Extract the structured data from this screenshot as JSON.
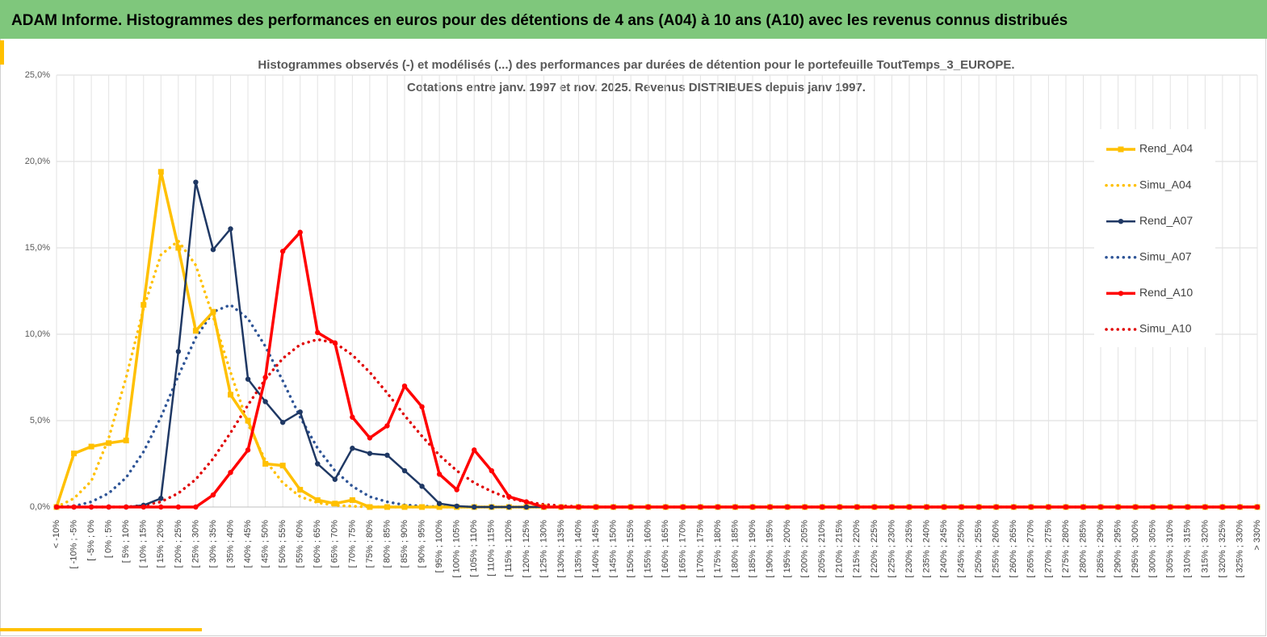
{
  "page_title": "ADAM Informe. Histogrammes des performances en euros pour des détentions de 4 ans (A04) à 10 ans (A10) avec les revenus connus distribués",
  "chart_data": {
    "type": "line",
    "title": "Histogrammes observés (-) et modélisés (...) des performances par durées de détention pour le portefeuille ToutTemps_3_EUROPE.",
    "subtitle": "Cotations entre janv. 1997 et nov. 2025. Revenus DISTRIBUES depuis janv 1997.",
    "categories": [
      "< -10%",
      "[ -10% ; -5%",
      "[ -5% ; 0%",
      "[ 0% ; 5%",
      "[ 5% ; 10%",
      "[ 10% ; 15%",
      "[ 15% ; 20%",
      "[ 20% ; 25%",
      "[ 25% ; 30%",
      "[ 30% ; 35%",
      "[ 35% ; 40%",
      "[ 40% ; 45%",
      "[ 45% ; 50%",
      "[ 50% ; 55%",
      "[ 55% ; 60%",
      "[ 60% ; 65%",
      "[ 65% ; 70%",
      "[ 70% ; 75%",
      "[ 75% ; 80%",
      "[ 80% ; 85%",
      "[ 85% ; 90%",
      "[ 90% ; 95%",
      "[ 95% ; 100%",
      "[ 100% ; 105%",
      "[ 105% ; 110%",
      "[ 110% ; 115%",
      "[ 115% ; 120%",
      "[ 120% ; 125%",
      "[ 125% ; 130%",
      "[ 130% ; 135%",
      "[ 135% ; 140%",
      "[ 140% ; 145%",
      "[ 145% ; 150%",
      "[ 150% ; 155%",
      "[ 155% ; 160%",
      "[ 160% ; 165%",
      "[ 165% ; 170%",
      "[ 170% ; 175%",
      "[ 175% ; 180%",
      "[ 180% ; 185%",
      "[ 185% ; 190%",
      "[ 190% ; 195%",
      "[ 195% ; 200%",
      "[ 200% ; 205%",
      "[ 205% ; 210%",
      "[ 210% ; 215%",
      "[ 215% ; 220%",
      "[ 220% ; 225%",
      "[ 225% ; 230%",
      "[ 230% ; 235%",
      "[ 235% ; 240%",
      "[ 240% ; 245%",
      "[ 245% ; 250%",
      "[ 250% ; 255%",
      "[ 255% ; 260%",
      "[ 260% ; 265%",
      "[ 265% ; 270%",
      "[ 270% ; 275%",
      "[ 275% ; 280%",
      "[ 280% ; 285%",
      "[ 285% ; 290%",
      "[ 290% ; 295%",
      "[ 295% ; 300%",
      "[ 300% ; 305%",
      "[ 305% ; 310%",
      "[ 310% ; 315%",
      "[ 315% ; 320%",
      "[ 320% ; 325%",
      "[ 325% ; 330%",
      "> 330%"
    ],
    "series": [
      {
        "name": "Rend_A04",
        "color": "#ffc000",
        "dash": "solid",
        "marker": "square",
        "width": 3.5,
        "values": [
          0,
          3.1,
          3.5,
          3.7,
          3.85,
          11.7,
          19.4,
          15.0,
          10.2,
          11.3,
          6.5,
          5.0,
          2.5,
          2.4,
          1.0,
          0.4,
          0.2,
          0.4,
          0,
          0,
          0,
          0,
          0,
          0,
          0,
          0,
          0,
          0,
          0,
          0,
          0,
          0,
          0,
          0,
          0,
          0,
          0,
          0,
          0,
          0,
          0,
          0,
          0,
          0,
          0,
          0,
          0,
          0,
          0,
          0,
          0,
          0,
          0,
          0,
          0,
          0,
          0,
          0,
          0,
          0,
          0,
          0,
          0,
          0,
          0,
          0,
          0,
          0,
          0,
          0
        ]
      },
      {
        "name": "Simu_A04",
        "color": "#ffc000",
        "dash": "dotted",
        "marker": "none",
        "width": 3.5,
        "values": [
          0,
          0.5,
          1.5,
          4.0,
          7.5,
          11.5,
          14.6,
          15.4,
          14.0,
          11.0,
          7.8,
          4.8,
          2.7,
          1.4,
          0.6,
          0.25,
          0.1,
          0.04,
          0.01,
          0,
          0,
          0,
          0,
          0,
          0,
          0,
          0,
          0,
          0,
          0,
          0,
          0,
          0,
          0,
          0,
          0,
          0,
          0,
          0,
          0,
          0,
          0,
          0,
          0,
          0,
          0,
          0,
          0,
          0,
          0,
          0,
          0,
          0,
          0,
          0,
          0,
          0,
          0,
          0,
          0,
          0,
          0,
          0,
          0,
          0,
          0,
          0,
          0,
          0,
          0
        ]
      },
      {
        "name": "Rend_A07",
        "color": "#1f3864",
        "dash": "solid",
        "marker": "circle",
        "width": 2.5,
        "values": [
          0,
          0,
          0,
          0,
          0,
          0.1,
          0.5,
          9.0,
          18.8,
          14.9,
          16.1,
          7.4,
          6.1,
          4.9,
          5.5,
          2.5,
          1.6,
          3.4,
          3.1,
          3.0,
          2.1,
          1.2,
          0.2,
          0.05,
          0,
          0,
          0,
          0,
          0,
          0,
          0,
          0,
          0,
          0,
          0,
          0,
          0,
          0,
          0,
          0,
          0,
          0,
          0,
          0,
          0,
          0,
          0,
          0,
          0,
          0,
          0,
          0,
          0,
          0,
          0,
          0,
          0,
          0,
          0,
          0,
          0,
          0,
          0,
          0,
          0,
          0,
          0,
          0,
          0,
          0
        ]
      },
      {
        "name": "Simu_A07",
        "color": "#2f5597",
        "dash": "dotted",
        "marker": "none",
        "width": 3.5,
        "values": [
          0,
          0.05,
          0.3,
          0.8,
          1.7,
          3.2,
          5.2,
          7.6,
          9.8,
          11.3,
          11.7,
          10.9,
          9.3,
          7.3,
          5.2,
          3.4,
          2.1,
          1.2,
          0.6,
          0.3,
          0.12,
          0.05,
          0.02,
          0,
          0,
          0,
          0,
          0,
          0,
          0,
          0,
          0,
          0,
          0,
          0,
          0,
          0,
          0,
          0,
          0,
          0,
          0,
          0,
          0,
          0,
          0,
          0,
          0,
          0,
          0,
          0,
          0,
          0,
          0,
          0,
          0,
          0,
          0,
          0,
          0,
          0,
          0,
          0,
          0,
          0,
          0,
          0,
          0,
          0,
          0
        ]
      },
      {
        "name": "Rend_A10",
        "color": "#ff0000",
        "dash": "solid",
        "marker": "circle",
        "width": 3.5,
        "values": [
          0,
          0,
          0,
          0,
          0,
          0,
          0,
          0,
          0,
          0.7,
          2.0,
          3.3,
          7.5,
          14.8,
          15.9,
          10.1,
          9.5,
          5.2,
          4.0,
          4.7,
          7.0,
          5.8,
          1.9,
          1.0,
          3.3,
          2.1,
          0.6,
          0.3,
          0,
          0,
          0,
          0,
          0,
          0,
          0,
          0,
          0,
          0,
          0,
          0,
          0,
          0,
          0,
          0,
          0,
          0,
          0,
          0,
          0,
          0,
          0,
          0,
          0,
          0,
          0,
          0,
          0,
          0,
          0,
          0,
          0,
          0,
          0,
          0,
          0,
          0,
          0,
          0,
          0,
          0
        ]
      },
      {
        "name": "Simu_A10",
        "color": "#e00000",
        "dash": "dotted",
        "marker": "none",
        "width": 3.5,
        "values": [
          0,
          0,
          0,
          0,
          0,
          0.1,
          0.3,
          0.8,
          1.6,
          2.8,
          4.3,
          5.9,
          7.4,
          8.6,
          9.4,
          9.7,
          9.5,
          8.8,
          7.8,
          6.6,
          5.3,
          4.1,
          3.0,
          2.1,
          1.4,
          0.9,
          0.5,
          0.3,
          0.15,
          0.07,
          0.03,
          0,
          0,
          0,
          0,
          0,
          0,
          0,
          0,
          0,
          0,
          0,
          0,
          0,
          0,
          0,
          0,
          0,
          0,
          0,
          0,
          0,
          0,
          0,
          0,
          0,
          0,
          0,
          0,
          0,
          0,
          0,
          0,
          0,
          0,
          0,
          0,
          0,
          0,
          0
        ]
      }
    ],
    "ylim": [
      0,
      25
    ],
    "yticks": [
      {
        "value": 0,
        "label": "0,0%"
      },
      {
        "value": 5,
        "label": "5,0%"
      },
      {
        "value": 10,
        "label": "10,0%"
      },
      {
        "value": 15,
        "label": "15,0%"
      },
      {
        "value": 20,
        "label": "20,0%"
      },
      {
        "value": 25,
        "label": "25,0%"
      }
    ],
    "grid": true,
    "legend": "right"
  }
}
